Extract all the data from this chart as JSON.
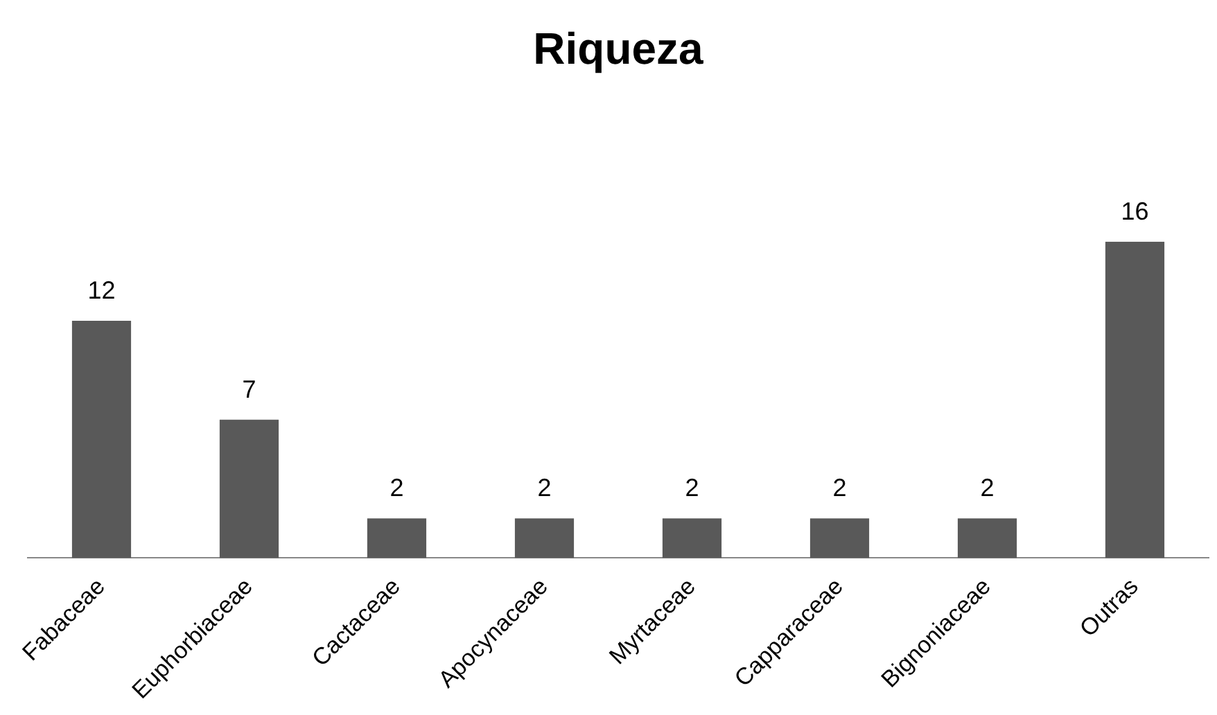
{
  "chart_data": {
    "type": "bar",
    "title": "Riqueza",
    "categories": [
      "Fabaceae",
      "Euphorbiaceae",
      "Cactaceae",
      "Apocynaceae",
      "Myrtaceae",
      "Capparaceae",
      "Bignoniaceae",
      "Outras"
    ],
    "values": [
      12,
      7,
      2,
      2,
      2,
      2,
      2,
      16
    ],
    "color": "#595959",
    "data_labels": true
  }
}
